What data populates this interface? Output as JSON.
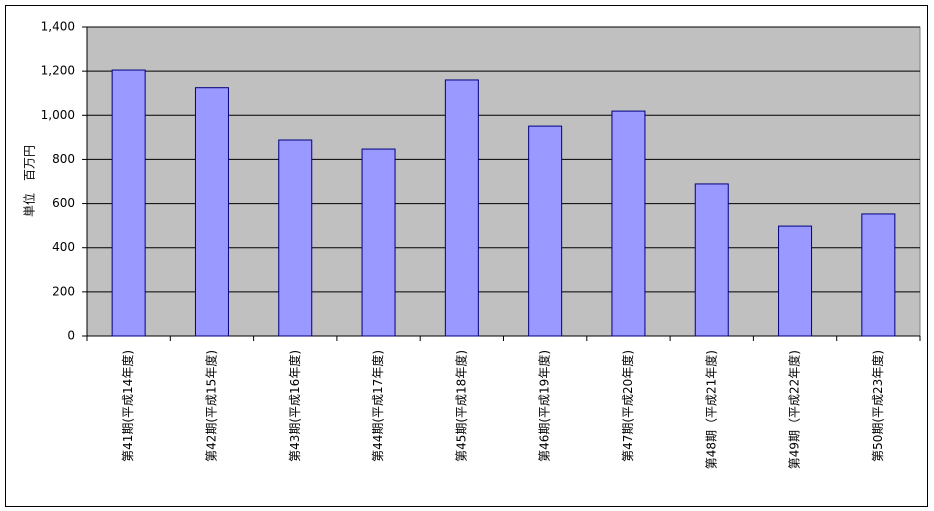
{
  "chart_data": {
    "type": "bar",
    "y_label": "単位　百万円",
    "categories": [
      "第41期(平成14年度)",
      "第42期(平成15年度)",
      "第43期(平成16年度)",
      "第44期(平成17年度)",
      "第45期(平成18年度)",
      "第46期(平成19年度)",
      "第47期(平成20年度)",
      "第48期（平成21年度)",
      "第49期（平成22年度)",
      "第50期(平成23年度)"
    ],
    "values": [
      1205,
      1125,
      888,
      847,
      1160,
      951,
      1019,
      689,
      498,
      553
    ],
    "color": "#9999ff",
    "ylim": [
      0,
      1400
    ],
    "yticks": [
      0,
      200,
      400,
      600,
      800,
      {
        "value": 1000,
        "label": "1,000"
      },
      {
        "value": 1200,
        "label": "1,200"
      },
      {
        "value": 1400,
        "label": "1,400"
      }
    ],
    "grid": true
  }
}
